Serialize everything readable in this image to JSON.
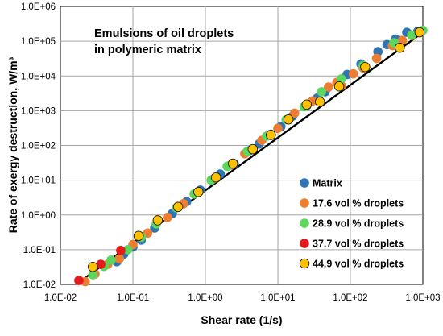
{
  "chart_data": {
    "type": "scatter",
    "xscale": "log",
    "yscale": "log",
    "xlim": [
      0.01,
      1000
    ],
    "ylim": [
      0.01,
      1000000
    ],
    "grid": true,
    "legend_position": "bottom-right",
    "xlabel": "Shear rate (1/s)",
    "ylabel": "Rate of exergy destruction, W/m³",
    "annotation_lines": [
      "Emulsions of oil droplets",
      "in polymeric matrix"
    ],
    "x_ticks": [
      0.01,
      0.1,
      1,
      10,
      100,
      1000
    ],
    "x_tick_labels": [
      "1.0E-02",
      "1.0E-01",
      "1.0E+00",
      "1.0E+01",
      "1.0E+02",
      "1.0E+03"
    ],
    "y_ticks": [
      0.01,
      0.1,
      1,
      10,
      100,
      1000,
      10000,
      100000,
      1000000
    ],
    "y_tick_labels": [
      "1.0E-02",
      "1.0E-01",
      "1.0E+00",
      "1.0E+01",
      "1.0E+02",
      "1.0E+03",
      "1.0E+04",
      "1.0E+05",
      "1.0E+06"
    ],
    "fit_line": {
      "color": "#000000",
      "points": [
        [
          0.017,
          0.0105
        ],
        [
          1000,
          180000
        ]
      ]
    },
    "series": [
      {
        "name": "Matrix",
        "color": "#2E75B6",
        "points": [
          [
            0.06,
            0.045
          ],
          [
            0.075,
            0.075
          ],
          [
            0.1,
            0.12
          ],
          [
            0.13,
            0.19
          ],
          [
            0.2,
            0.42
          ],
          [
            0.35,
            1.1
          ],
          [
            0.55,
            2.4
          ],
          [
            0.85,
            5.2
          ],
          [
            1.6,
            15
          ],
          [
            2.5,
            30
          ],
          [
            4,
            70
          ],
          [
            5.5,
            110
          ],
          [
            8,
            210
          ],
          [
            11,
            350
          ],
          [
            16,
            700
          ],
          [
            25,
            1400
          ],
          [
            35,
            2300
          ],
          [
            45,
            3500
          ],
          [
            90,
            11000
          ],
          [
            140,
            22000
          ],
          [
            240,
            50000
          ],
          [
            320,
            80000
          ],
          [
            420,
            115000
          ],
          [
            600,
            180000
          ],
          [
            850,
            190000
          ]
        ]
      },
      {
        "name": "17.6 vol % droplets",
        "color": "#ED7D31",
        "points": [
          [
            0.022,
            0.012
          ],
          [
            0.03,
            0.02
          ],
          [
            0.045,
            0.038
          ],
          [
            0.065,
            0.055
          ],
          [
            0.1,
            0.14
          ],
          [
            0.16,
            0.3
          ],
          [
            0.3,
            0.85
          ],
          [
            0.5,
            2.1
          ],
          [
            0.8,
            4.5
          ],
          [
            1.3,
            11
          ],
          [
            2.2,
            27
          ],
          [
            3.5,
            58
          ],
          [
            6,
            140
          ],
          [
            10,
            310
          ],
          [
            17,
            850
          ],
          [
            30,
            1900
          ],
          [
            50,
            4800
          ],
          [
            65,
            6500
          ],
          [
            75,
            5200
          ],
          [
            110,
            11500
          ],
          [
            150,
            17000
          ],
          [
            230,
            32000
          ],
          [
            380,
            75000
          ],
          [
            520,
            105000
          ],
          [
            700,
            145000
          ]
        ]
      },
      {
        "name": "28.9 vol % droplets",
        "color": "#5CD65C",
        "points": [
          [
            0.028,
            0.019
          ],
          [
            0.04,
            0.033
          ],
          [
            0.05,
            0.05
          ],
          [
            0.085,
            0.1
          ],
          [
            0.13,
            0.23
          ],
          [
            0.21,
            0.55
          ],
          [
            0.4,
            1.6
          ],
          [
            0.7,
            4.0
          ],
          [
            1.2,
            10
          ],
          [
            2,
            25
          ],
          [
            3.8,
            68
          ],
          [
            7,
            185
          ],
          [
            13,
            550
          ],
          [
            23,
            1300
          ],
          [
            40,
            3500
          ],
          [
            75,
            8200
          ],
          [
            150,
            20000
          ],
          [
            400,
            90000
          ],
          [
            700,
            150000
          ],
          [
            1000,
            205000
          ]
        ]
      },
      {
        "name": "37.7 vol % droplets",
        "color": "#E31B1B",
        "points": [
          [
            0.018,
            0.013
          ],
          [
            0.036,
            0.038
          ],
          [
            0.068,
            0.095
          ]
        ]
      },
      {
        "name": "44.9 vol % droplets",
        "color": "#FFC000",
        "points": [
          [
            0.028,
            0.032
          ],
          [
            0.12,
            0.25
          ],
          [
            0.22,
            0.7
          ],
          [
            0.42,
            1.7
          ],
          [
            0.8,
            4.6
          ],
          [
            1.4,
            12
          ],
          [
            2.4,
            30
          ],
          [
            4.5,
            78
          ],
          [
            8,
            200
          ],
          [
            14,
            560
          ],
          [
            25,
            1500
          ],
          [
            38,
            1800
          ],
          [
            70,
            5000
          ],
          [
            160,
            18000
          ],
          [
            480,
            65000
          ],
          [
            900,
            180000
          ]
        ]
      }
    ]
  }
}
